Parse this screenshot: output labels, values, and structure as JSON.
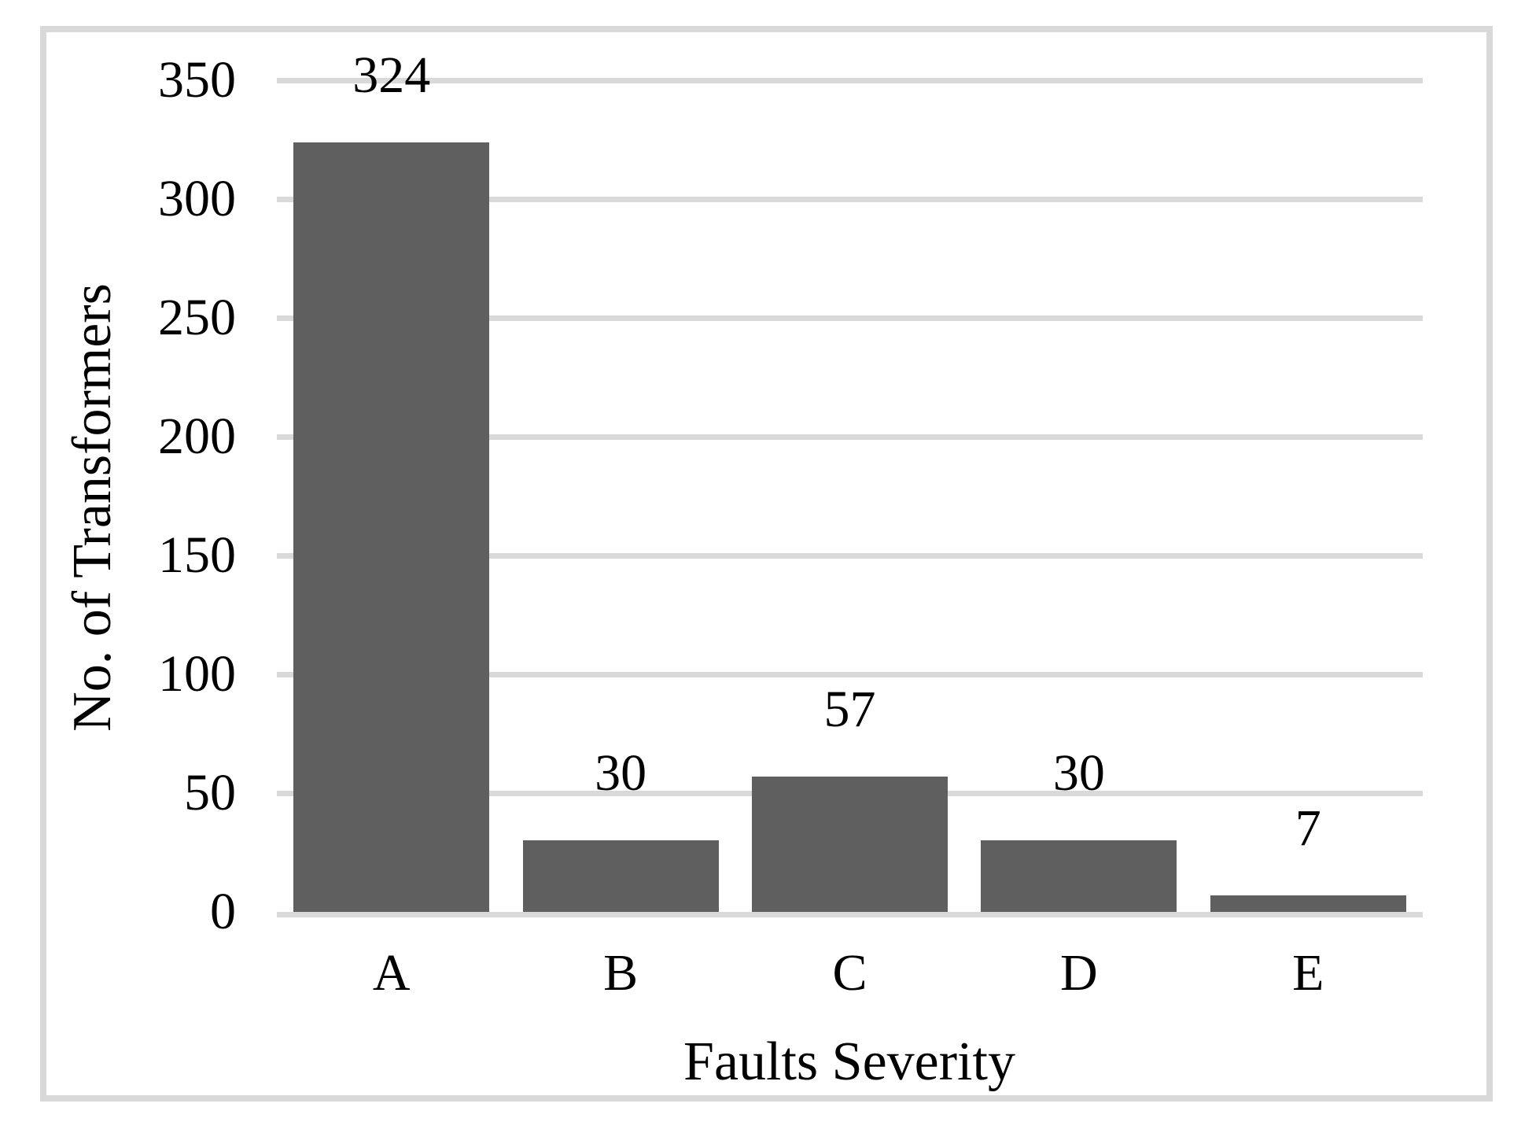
{
  "figure": {
    "kind": "bar-chart-figure",
    "colors": {
      "background": "#FFFFFF",
      "frame_border": "#D9D9D9",
      "gridline": "#D9D9D9",
      "axis_line": "#D9D9D9",
      "bar_fill": "#5F5F5F",
      "text": "#000000"
    }
  },
  "chart_data": {
    "type": "bar",
    "title": "",
    "xlabel": "Faults Severity",
    "ylabel": "No. of Transformers",
    "categories": [
      "A",
      "B",
      "C",
      "D",
      "E"
    ],
    "values": [
      324,
      30,
      57,
      30,
      7
    ],
    "data_labels": [
      "324",
      "30",
      "57",
      "30",
      "7"
    ],
    "ylim": [
      0,
      350
    ],
    "yticks": [
      0,
      50,
      100,
      150,
      200,
      250,
      300,
      350
    ],
    "grid": "horizontal-major",
    "legend_position": "none",
    "data_label_position": "outside-end"
  }
}
